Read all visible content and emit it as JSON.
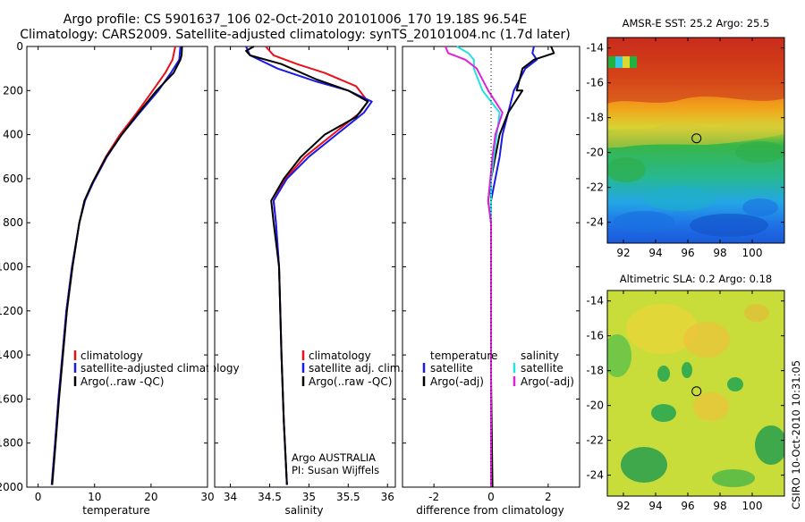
{
  "title": {
    "line1": "Argo profile: CS 5901637_106 02-Oct-2010 20101006_170 19.18S 96.54E",
    "line2": "Climatology: CARS2009. Satellite-adjusted climatology: synTS_20101004.nc (1.7d later)"
  },
  "depth_ticks": [
    "0",
    "200",
    "400",
    "600",
    "800",
    "1000",
    "1200",
    "1400",
    "1600",
    "1800",
    "2000"
  ],
  "credit": "CSIRO 10-Oct-2010 10:31:05",
  "colors": {
    "climatology": "#e8101a",
    "satellite": "#1a1ae6",
    "argo": "#000000",
    "sal_satellite": "#22e3e3",
    "sal_argo": "#e022d6"
  },
  "chart_data": [
    {
      "type": "line",
      "name": "temperature",
      "xlabel": "temperature",
      "xticks": [
        "0",
        "10",
        "20",
        "30"
      ],
      "xlim": [
        -2,
        30
      ],
      "ylim": [
        2000,
        0
      ],
      "ylabel": "depth",
      "legend": [
        "climatology",
        "satellite-adjusted climatology",
        "Argo(..raw -QC)"
      ],
      "series": [
        {
          "name": "climatology",
          "points": [
            [
              24.3,
              0
            ],
            [
              23.8,
              60
            ],
            [
              22.5,
              120
            ],
            [
              20.3,
              200
            ],
            [
              17.5,
              300
            ],
            [
              14.5,
              400
            ],
            [
              12,
              500
            ],
            [
              9.6,
              620
            ],
            [
              8.3,
              700
            ],
            [
              7.3,
              800
            ],
            [
              6,
              1000
            ],
            [
              5,
              1200
            ],
            [
              4.3,
              1400
            ],
            [
              3.6,
              1600
            ],
            [
              3,
              1800
            ],
            [
              2.4,
              1990
            ]
          ]
        },
        {
          "name": "satellite-adjusted climatology",
          "points": [
            [
              25.2,
              0
            ],
            [
              25,
              60
            ],
            [
              23.5,
              120
            ],
            [
              21.3,
              200
            ],
            [
              18,
              300
            ],
            [
              14.8,
              400
            ],
            [
              12.2,
              500
            ],
            [
              9.7,
              620
            ],
            [
              8.3,
              700
            ],
            [
              7.3,
              800
            ],
            [
              6,
              1000
            ],
            [
              5,
              1200
            ],
            [
              4.3,
              1400
            ],
            [
              3.6,
              1600
            ],
            [
              3,
              1800
            ],
            [
              2.4,
              1990
            ]
          ]
        },
        {
          "name": "Argo(..raw -QC)",
          "points": [
            [
              25.5,
              0
            ],
            [
              25.4,
              40
            ],
            [
              25.2,
              60
            ],
            [
              24,
              120
            ],
            [
              21,
              200
            ],
            [
              17.8,
              300
            ],
            [
              14.8,
              400
            ],
            [
              12.1,
              500
            ],
            [
              9.6,
              620
            ],
            [
              8.2,
              700
            ],
            [
              7.3,
              800
            ],
            [
              6.1,
              1000
            ],
            [
              5.1,
              1200
            ],
            [
              4.4,
              1400
            ],
            [
              3.7,
              1600
            ],
            [
              3.1,
              1800
            ],
            [
              2.5,
              1990
            ]
          ]
        }
      ]
    },
    {
      "type": "line",
      "name": "salinity",
      "xlabel": "salinity",
      "xticks": [
        "34",
        "34.5",
        "35",
        "35.5",
        "36"
      ],
      "xlim": [
        33.8,
        36.1
      ],
      "ylim": [
        2000,
        0
      ],
      "legend": [
        "climatology",
        "satellite adj. clim.",
        "Argo(..raw -QC)"
      ],
      "annotation": [
        "Argo AUSTRALIA",
        "PI: Susan Wijffels"
      ],
      "series": [
        {
          "name": "climatology",
          "points": [
            [
              34.45,
              0
            ],
            [
              34.55,
              40
            ],
            [
              34.85,
              80
            ],
            [
              35.2,
              120
            ],
            [
              35.6,
              180
            ],
            [
              35.75,
              250
            ],
            [
              35.65,
              300
            ],
            [
              35.3,
              400
            ],
            [
              34.95,
              500
            ],
            [
              34.7,
              600
            ],
            [
              34.55,
              700
            ],
            [
              34.58,
              800
            ],
            [
              34.62,
              1000
            ],
            [
              34.65,
              1400
            ],
            [
              34.68,
              1700
            ],
            [
              34.72,
              1990
            ]
          ]
        },
        {
          "name": "satellite adj. clim.",
          "points": [
            [
              34.2,
              0
            ],
            [
              34.25,
              40
            ],
            [
              34.6,
              100
            ],
            [
              35.1,
              160
            ],
            [
              35.5,
              200
            ],
            [
              35.8,
              250
            ],
            [
              35.7,
              300
            ],
            [
              35.35,
              400
            ],
            [
              35,
              500
            ],
            [
              34.72,
              600
            ],
            [
              34.55,
              700
            ],
            [
              34.58,
              800
            ],
            [
              34.62,
              1000
            ],
            [
              34.65,
              1400
            ],
            [
              34.68,
              1700
            ],
            [
              34.72,
              1990
            ]
          ]
        },
        {
          "name": "Argo(..raw -QC)",
          "points": [
            [
              34.3,
              0
            ],
            [
              34.2,
              20
            ],
            [
              34.25,
              40
            ],
            [
              34.65,
              80
            ],
            [
              35.1,
              150
            ],
            [
              35.5,
              200
            ],
            [
              35.75,
              250
            ],
            [
              35.6,
              320
            ],
            [
              35.2,
              400
            ],
            [
              34.9,
              500
            ],
            [
              34.68,
              600
            ],
            [
              34.52,
              700
            ],
            [
              34.55,
              800
            ],
            [
              34.62,
              1000
            ],
            [
              34.65,
              1400
            ],
            [
              34.68,
              1700
            ],
            [
              34.72,
              1990
            ]
          ]
        }
      ]
    },
    {
      "type": "line",
      "name": "difference from climatology",
      "xlabel": "difference from climatology",
      "xticks": [
        "-2",
        "0",
        "2"
      ],
      "xlim": [
        -3.1,
        3.1
      ],
      "ylim": [
        2000,
        0
      ],
      "legend_headers": [
        "temperature",
        "salinity"
      ],
      "legend": [
        "satellite",
        "Argo(-adj)",
        "satellite",
        "Argo(-adj)"
      ],
      "series": [
        {
          "name": "temperature satellite",
          "points": [
            [
              1.5,
              0
            ],
            [
              1.45,
              30
            ],
            [
              1.6,
              60
            ],
            [
              1.2,
              100
            ],
            [
              0.8,
              200
            ],
            [
              0.6,
              300
            ],
            [
              0.4,
              400
            ],
            [
              0.3,
              500
            ],
            [
              0.15,
              600
            ],
            [
              0,
              700
            ],
            [
              0,
              800
            ],
            [
              0,
              1000
            ],
            [
              0,
              1500
            ],
            [
              0,
              2000
            ]
          ]
        },
        {
          "name": "temperature Argo(-adj)",
          "points": [
            [
              2.1,
              0
            ],
            [
              2.2,
              30
            ],
            [
              1.5,
              60
            ],
            [
              1.1,
              100
            ],
            [
              0.9,
              200
            ],
            [
              1.1,
              200
            ],
            [
              0.6,
              300
            ],
            [
              0.3,
              400
            ],
            [
              0.15,
              500
            ],
            [
              0,
              600
            ],
            [
              -0.1,
              700
            ],
            [
              0,
              800
            ],
            [
              0,
              1000
            ],
            [
              0,
              1500
            ],
            [
              0.05,
              2000
            ]
          ]
        },
        {
          "name": "salinity satellite",
          "points": [
            [
              -1.2,
              0
            ],
            [
              -0.8,
              30
            ],
            [
              -0.6,
              60
            ],
            [
              -0.6,
              100
            ],
            [
              -0.3,
              200
            ],
            [
              0.3,
              300
            ],
            [
              0.2,
              400
            ],
            [
              0.1,
              500
            ],
            [
              0,
              600
            ],
            [
              0,
              800
            ],
            [
              0,
              1000
            ],
            [
              0,
              1500
            ],
            [
              0,
              2000
            ]
          ]
        },
        {
          "name": "salinity Argo(-adj)",
          "points": [
            [
              -1.6,
              0
            ],
            [
              -1.5,
              30
            ],
            [
              -0.9,
              60
            ],
            [
              -0.5,
              100
            ],
            [
              -0.1,
              200
            ],
            [
              0.4,
              300
            ],
            [
              0.15,
              400
            ],
            [
              0.05,
              500
            ],
            [
              -0.1,
              700
            ],
            [
              0,
              800
            ],
            [
              0,
              1000
            ],
            [
              0,
              2000
            ]
          ]
        }
      ]
    },
    {
      "type": "heatmap",
      "name": "AMSR-E SST",
      "title": "AMSR-E SST: 25.2 Argo: 25.5",
      "xticks": [
        "92",
        "94",
        "96",
        "98",
        "100"
      ],
      "yticks": [
        "-14",
        "-16",
        "-18",
        "-20",
        "-22",
        "-24"
      ],
      "xlim": [
        91,
        102
      ],
      "ylim": [
        -25.2,
        -13.4
      ],
      "marker": [
        96.54,
        -19.18
      ]
    },
    {
      "type": "heatmap",
      "name": "Altimetric SLA",
      "title": "Altimetric SLA: 0.2 Argo: 0.18",
      "xticks": [
        "92",
        "94",
        "96",
        "98",
        "100"
      ],
      "yticks": [
        "-14",
        "-16",
        "-18",
        "-20",
        "-22",
        "-24"
      ],
      "xlim": [
        91,
        102
      ],
      "ylim": [
        -25.2,
        -13.4
      ],
      "marker": [
        96.54,
        -19.18
      ]
    }
  ]
}
